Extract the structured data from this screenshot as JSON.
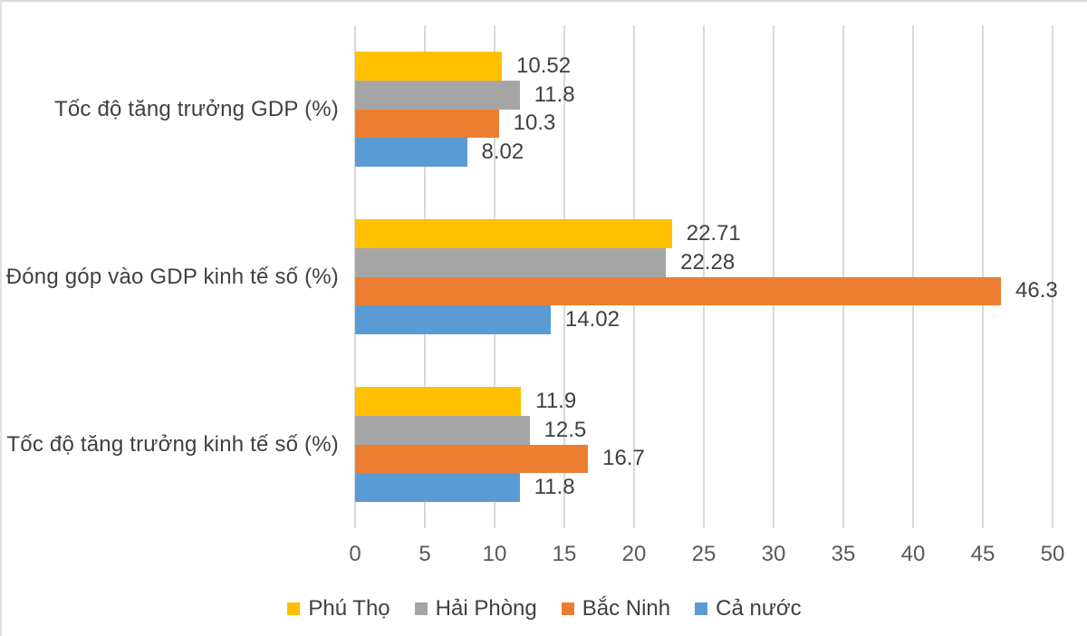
{
  "chart_data": {
    "type": "bar",
    "orientation": "horizontal",
    "title": "",
    "categories": [
      "Tốc độ tăng trưởng GDP (%)",
      "Đóng góp vào GDP kinh tế số (%)",
      "Tốc độ tăng trưởng kinh tế số (%)"
    ],
    "series": [
      {
        "name": "Phú Thọ",
        "color": "#FFC000",
        "values": [
          10.52,
          22.71,
          11.9
        ]
      },
      {
        "name": "Hải Phòng",
        "color": "#A5A5A5",
        "values": [
          11.8,
          22.28,
          12.5
        ]
      },
      {
        "name": "Bắc Ninh",
        "color": "#ED7D31",
        "values": [
          10.3,
          46.3,
          16.7
        ]
      },
      {
        "name": "Cả nước",
        "color": "#5B9BD5",
        "values": [
          8.02,
          14.02,
          11.8
        ]
      }
    ],
    "x_axis": {
      "min": 0,
      "max": 50,
      "step": 5,
      "tick_labels": [
        "0",
        "5",
        "10",
        "15",
        "20",
        "25",
        "30",
        "35",
        "40",
        "45",
        "50"
      ]
    },
    "legend": {
      "position": "bottom",
      "entries": [
        "Phú Thọ",
        "Hải Phòng",
        "Bắc Ninh",
        "Cả nước"
      ]
    },
    "grid": "vertical",
    "data_labels": "outside-end"
  },
  "colors": {
    "background": "#ffffff",
    "gridline": "#d9d9d9",
    "category_text": "#404040",
    "data_label_text": "#404040",
    "tick_text": "#595959",
    "legend_text": "#404040",
    "border": "#dadada"
  }
}
